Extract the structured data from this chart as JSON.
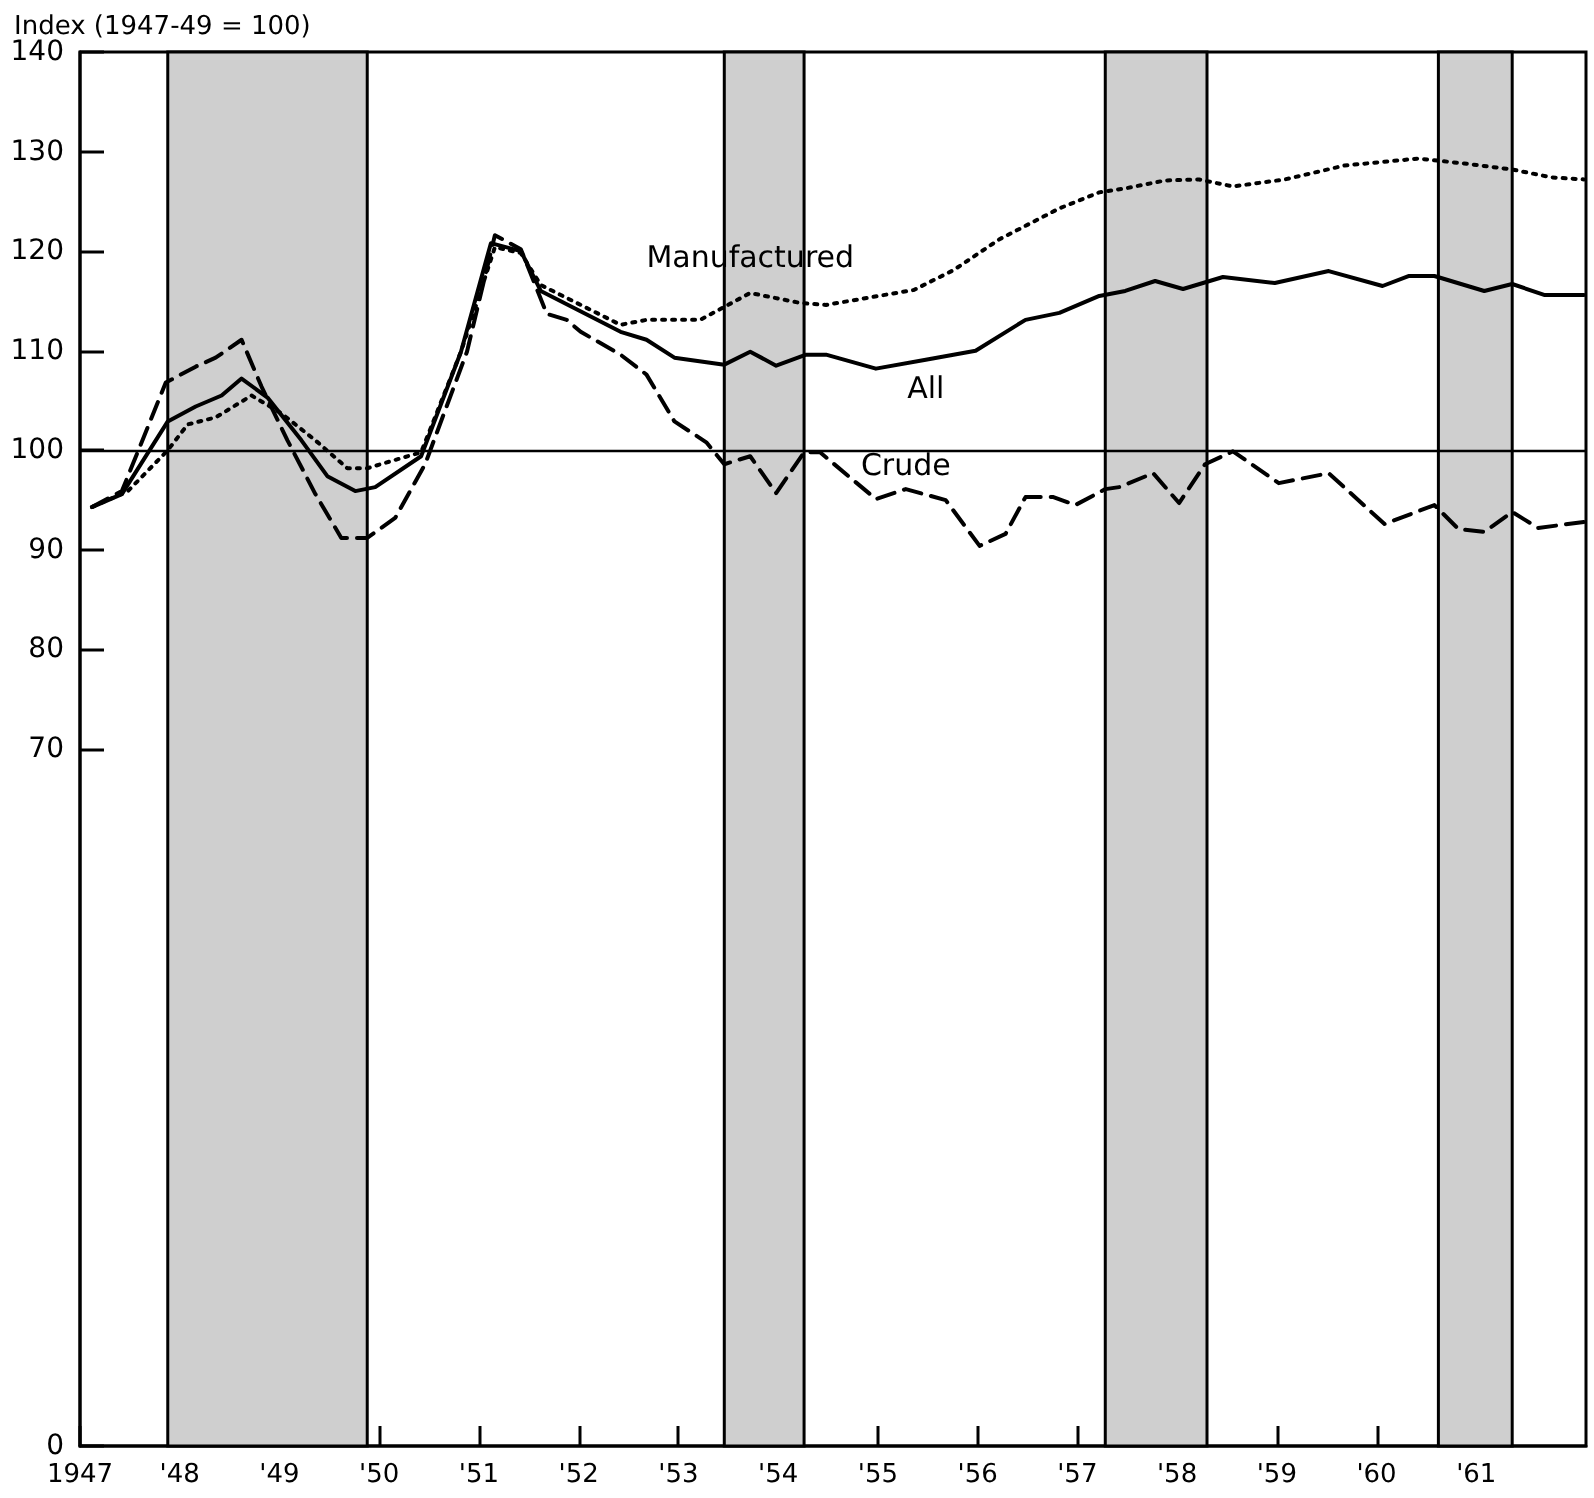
{
  "chart_data": {
    "type": "line",
    "ylabel": "Index (1947-49 = 100)",
    "xlim": [
      1947,
      1962.1
    ],
    "ylim": [
      0,
      140
    ],
    "xticks": [
      1947,
      {
        "value": 1948,
        "label": "'48"
      },
      {
        "value": 1949,
        "label": "'49"
      },
      {
        "value": 1950,
        "label": "'50"
      },
      {
        "value": 1951,
        "label": "'51"
      },
      {
        "value": 1952,
        "label": "'52"
      },
      {
        "value": 1953,
        "label": "'53"
      },
      {
        "value": 1954,
        "label": "'54"
      },
      {
        "value": 1955,
        "label": "'55"
      },
      {
        "value": 1956,
        "label": "'56"
      },
      {
        "value": 1957,
        "label": "'57"
      },
      {
        "value": 1958,
        "label": "'58"
      },
      {
        "value": 1959,
        "label": "'59"
      },
      {
        "value": 1960,
        "label": "'60"
      },
      {
        "value": 1961,
        "label": "'61"
      }
    ],
    "yticks": [
      0,
      70,
      80,
      90,
      100,
      110,
      120,
      130,
      140
    ],
    "grid": false,
    "legend": false,
    "marker": "none",
    "ref_lines": [
      {
        "axis": "y",
        "value": 100,
        "color": "#000000",
        "line_style": "solid"
      }
    ],
    "bands": [
      {
        "axis": "x",
        "from": 1947.88,
        "to": 1949.88,
        "color": "#cfcfcf"
      },
      {
        "axis": "x",
        "from": 1953.46,
        "to": 1954.26,
        "color": "#cfcfcf"
      },
      {
        "axis": "x",
        "from": 1957.28,
        "to": 1958.3,
        "color": "#cfcfcf"
      },
      {
        "axis": "x",
        "from": 1960.62,
        "to": 1961.36,
        "color": "#cfcfcf"
      }
    ],
    "series": [
      {
        "name": "Manufactured",
        "color": "#000000",
        "line_style": "dotted",
        "x": [
          1947.12,
          1947.48,
          1947.88,
          1948.08,
          1948.36,
          1948.72,
          1949.02,
          1949.36,
          1949.68,
          1949.88,
          1950.42,
          1950.82,
          1951.16,
          1951.42,
          1951.62,
          1952.42,
          1952.68,
          1953.22,
          1953.72,
          1954.22,
          1954.48,
          1955.36,
          1955.76,
          1956.22,
          1956.82,
          1957.22,
          1957.48,
          1957.88,
          1958.22,
          1958.56,
          1959.08,
          1959.68,
          1960.42,
          1960.88,
          1961.36,
          1961.76,
          1962.08
        ],
        "values": [
          94.3,
          95.9,
          100,
          102.6,
          103.3,
          105.5,
          103.7,
          101,
          98.2,
          98.2,
          99.8,
          109.9,
          120.4,
          119.8,
          116.6,
          112.6,
          113.1,
          113.1,
          115.8,
          114.8,
          114.6,
          116.1,
          118.1,
          121.2,
          124.3,
          125.9,
          126.3,
          127.1,
          127.2,
          126.5,
          127.2,
          128.6,
          129.3,
          128.8,
          128.2,
          127.4,
          127.2
        ]
      },
      {
        "name": "All",
        "color": "#000000",
        "line_style": "solid",
        "x": [
          1947.12,
          1947.42,
          1947.88,
          1948.16,
          1948.42,
          1948.62,
          1948.88,
          1949.22,
          1949.48,
          1949.76,
          1949.96,
          1950.42,
          1950.82,
          1951.12,
          1951.42,
          1951.62,
          1952.42,
          1952.68,
          1952.96,
          1953.46,
          1953.72,
          1953.98,
          1954.28,
          1954.48,
          1954.98,
          1955.48,
          1955.98,
          1956.48,
          1956.82,
          1957.22,
          1957.48,
          1957.78,
          1958.06,
          1958.46,
          1958.98,
          1959.52,
          1960.06,
          1960.32,
          1960.58,
          1961.08,
          1961.36,
          1961.68,
          1962.08
        ],
        "values": [
          94.3,
          95.6,
          102.9,
          104.4,
          105.5,
          107.2,
          105.3,
          101,
          97.4,
          95.9,
          96.3,
          99.4,
          109.9,
          120.8,
          120,
          116,
          111.9,
          111.1,
          109.3,
          108.6,
          109.9,
          108.5,
          109.6,
          109.6,
          108.2,
          109.1,
          110,
          113.1,
          113.8,
          115.5,
          116,
          117,
          116.2,
          117.4,
          116.8,
          118,
          116.5,
          117.5,
          117.5,
          116,
          116.7,
          115.6,
          115.6
        ]
      },
      {
        "name": "Crude",
        "color": "#000000",
        "line_style": "dashed",
        "x": [
          1947.12,
          1947.42,
          1947.86,
          1948.16,
          1948.36,
          1948.62,
          1948.82,
          1949.08,
          1949.36,
          1949.62,
          1949.88,
          1950.16,
          1950.46,
          1950.88,
          1951.16,
          1951.42,
          1951.68,
          1951.88,
          1952.02,
          1952.42,
          1952.68,
          1952.96,
          1953.28,
          1953.46,
          1953.72,
          1953.98,
          1954.26,
          1954.42,
          1954.98,
          1955.28,
          1955.68,
          1956.02,
          1956.28,
          1956.48,
          1956.76,
          1956.98,
          1957.28,
          1957.42,
          1957.76,
          1958.02,
          1958.28,
          1958.56,
          1959.02,
          1959.52,
          1960.08,
          1960.58,
          1960.82,
          1961.08,
          1961.36,
          1961.62,
          1962.08
        ],
        "values": [
          94.3,
          95.9,
          106.8,
          108.4,
          109.3,
          111.1,
          106.4,
          101,
          95.6,
          91.2,
          91.2,
          93.2,
          98.6,
          109.9,
          121.6,
          120.2,
          113.7,
          113.1,
          111.9,
          109.6,
          107.6,
          102.9,
          100.8,
          98.6,
          99.4,
          95.7,
          99.8,
          99.8,
          95.1,
          96.1,
          95,
          90.4,
          91.6,
          95.3,
          95.3,
          94.5,
          96.1,
          96.3,
          97.7,
          94.7,
          98.6,
          99.9,
          96.7,
          97.7,
          92.6,
          94.5,
          92.1,
          91.8,
          93.8,
          92.2,
          92.8
        ]
      }
    ]
  }
}
